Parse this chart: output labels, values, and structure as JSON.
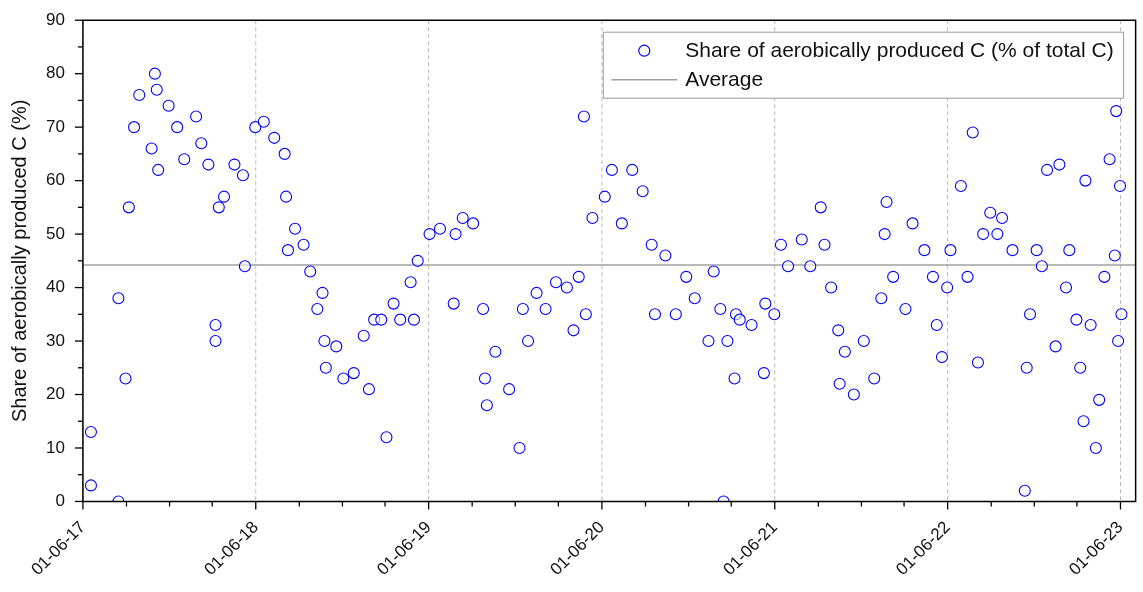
{
  "chart_data": {
    "type": "scatter",
    "ylabel": "Share of aerobically produced C (%)",
    "x": [
      "2017-06-18",
      "2017-06-18",
      "2017-08-15",
      "2017-08-15",
      "2017-08-30",
      "2017-09-06",
      "2017-09-17",
      "2017-09-28",
      "2017-10-24",
      "2017-10-31",
      "2017-11-04",
      "2017-11-07",
      "2017-11-29",
      "2017-12-17",
      "2018-01-01",
      "2018-01-26",
      "2018-02-06",
      "2018-02-21",
      "2018-03-08",
      "2018-03-08",
      "2018-03-15",
      "2018-03-26",
      "2018-04-17",
      "2018-05-05",
      "2018-05-09",
      "2018-05-31",
      "2018-06-18",
      "2018-07-10",
      "2018-08-01",
      "2018-08-04",
      "2018-08-08",
      "2018-08-23",
      "2018-09-10",
      "2018-09-24",
      "2018-10-09",
      "2018-10-20",
      "2018-10-24",
      "2018-10-27",
      "2018-11-18",
      "2018-12-03",
      "2018-12-25",
      "2019-01-15",
      "2019-01-26",
      "2019-02-06",
      "2019-02-21",
      "2019-03-04",
      "2019-03-19",
      "2019-04-02",
      "2019-04-24",
      "2019-05-01",
      "2019-05-09",
      "2019-06-03",
      "2019-06-25",
      "2019-07-24",
      "2019-07-28",
      "2019-08-12",
      "2019-09-03",
      "2019-09-24",
      "2019-09-28",
      "2019-10-02",
      "2019-10-20",
      "2019-11-18",
      "2019-12-10",
      "2019-12-17",
      "2019-12-28",
      "2020-01-15",
      "2020-02-03",
      "2020-02-25",
      "2020-03-19",
      "2020-04-02",
      "2020-04-13",
      "2020-04-24",
      "2020-04-28",
      "2020-05-12",
      "2020-06-07",
      "2020-06-22",
      "2020-07-13",
      "2020-08-04",
      "2020-08-26",
      "2020-09-14",
      "2020-09-21",
      "2020-10-13",
      "2020-11-04",
      "2020-11-26",
      "2020-12-14",
      "2021-01-12",
      "2021-01-23",
      "2021-02-06",
      "2021-02-13",
      "2021-02-21",
      "2021-03-08",
      "2021-03-11",
      "2021-03-19",
      "2021-04-13",
      "2021-05-09",
      "2021-05-12",
      "2021-05-31",
      "2021-06-14",
      "2021-06-29",
      "2021-07-28",
      "2021-08-15",
      "2021-09-06",
      "2021-09-14",
      "2021-09-28",
      "2021-10-13",
      "2021-10-16",
      "2021-10-27",
      "2021-11-15",
      "2021-12-06",
      "2021-12-28",
      "2022-01-12",
      "2022-01-19",
      "2022-01-23",
      "2022-02-06",
      "2022-03-04",
      "2022-03-19",
      "2022-04-13",
      "2022-05-01",
      "2022-05-09",
      "2022-05-20",
      "2022-05-31",
      "2022-06-07",
      "2022-06-29",
      "2022-07-13",
      "2022-07-24",
      "2022-08-04",
      "2022-08-15",
      "2022-08-30",
      "2022-09-14",
      "2022-09-24",
      "2022-10-16",
      "2022-11-11",
      "2022-11-15",
      "2022-11-22",
      "2022-12-06",
      "2022-12-17",
      "2022-12-28",
      "2023-01-15",
      "2023-01-23",
      "2023-02-06",
      "2023-02-13",
      "2023-02-28",
      "2023-03-08",
      "2023-03-15",
      "2023-03-19",
      "2023-03-30",
      "2023-04-10",
      "2023-04-17",
      "2023-04-28",
      "2023-05-09",
      "2023-05-20",
      "2023-05-23",
      "2023-05-27",
      "2023-05-31",
      "2023-06-03"
    ],
    "series": [
      {
        "name": "Share of aerobically produced C (% of total C)",
        "color": "#0000ff",
        "values": [
          13,
          3,
          0,
          38,
          23,
          55,
          70,
          76,
          66,
          80,
          77,
          62,
          74,
          70,
          64,
          72,
          67,
          63,
          33,
          30,
          55,
          57,
          63,
          61,
          44,
          70,
          71,
          68,
          65,
          57,
          47,
          51,
          48,
          43,
          36,
          39,
          30,
          25,
          29,
          23,
          24,
          31,
          21,
          34,
          34,
          12,
          37,
          34,
          41,
          34,
          45,
          50,
          51,
          37,
          50,
          53,
          52,
          36,
          23,
          18,
          28,
          21,
          10,
          36,
          30,
          39,
          36,
          41,
          40,
          32,
          42,
          72,
          35,
          53,
          57,
          62,
          52,
          62,
          58,
          48,
          35,
          46,
          35,
          42,
          38,
          30,
          43,
          36,
          0,
          30,
          23,
          35,
          34,
          33,
          24,
          37,
          35,
          48,
          44,
          49,
          44,
          55,
          48,
          40,
          32,
          22,
          28,
          20,
          30,
          23,
          38,
          50,
          56,
          42,
          36,
          52,
          47,
          42,
          33,
          27,
          40,
          47,
          59,
          42,
          69,
          26,
          50,
          54,
          50,
          53,
          47,
          2,
          25,
          35,
          47,
          44,
          62,
          29,
          63,
          40,
          47,
          34,
          25,
          15,
          60,
          33,
          10,
          19,
          42,
          64,
          46,
          73,
          30,
          59,
          35
        ]
      }
    ],
    "xlim": [
      "2017-06-01",
      "2023-07-03"
    ],
    "xticks": [
      {
        "value": "2017-06-01",
        "label": "01-06-17"
      },
      {
        "value": "2017-09-01",
        "label": null
      },
      {
        "value": "2017-12-01",
        "label": null
      },
      {
        "value": "2018-03-01",
        "label": null
      },
      {
        "value": "2018-06-01",
        "label": "01-06-18"
      },
      {
        "value": "2018-09-01",
        "label": null
      },
      {
        "value": "2018-12-01",
        "label": null
      },
      {
        "value": "2019-03-01",
        "label": null
      },
      {
        "value": "2019-06-01",
        "label": "01-06-19"
      },
      {
        "value": "2019-09-01",
        "label": null
      },
      {
        "value": "2019-12-01",
        "label": null
      },
      {
        "value": "2020-03-01",
        "label": null
      },
      {
        "value": "2020-06-01",
        "label": "01-06-20"
      },
      {
        "value": "2020-09-01",
        "label": null
      },
      {
        "value": "2020-12-01",
        "label": null
      },
      {
        "value": "2021-03-01",
        "label": null
      },
      {
        "value": "2021-06-01",
        "label": "01-06-21"
      },
      {
        "value": "2021-09-01",
        "label": null
      },
      {
        "value": "2021-12-01",
        "label": null
      },
      {
        "value": "2022-03-01",
        "label": null
      },
      {
        "value": "2022-06-01",
        "label": "01-06-22"
      },
      {
        "value": "2022-09-01",
        "label": null
      },
      {
        "value": "2022-12-01",
        "label": null
      },
      {
        "value": "2023-03-01",
        "label": null
      },
      {
        "value": "2023-06-01",
        "label": "01-06-23"
      }
    ],
    "ylim": [
      0,
      90
    ],
    "yticks": [
      0,
      {
        "value": 5,
        "label": null
      },
      10,
      {
        "value": 15,
        "label": null
      },
      20,
      {
        "value": 25,
        "label": null
      },
      30,
      {
        "value": 35,
        "label": null
      },
      40,
      {
        "value": 45,
        "label": null
      },
      50,
      {
        "value": 55,
        "label": null
      },
      60,
      {
        "value": 65,
        "label": null
      },
      70,
      {
        "value": 75,
        "label": null
      },
      80,
      {
        "value": 85,
        "label": null
      },
      90
    ],
    "grid": "x",
    "legend": "top right",
    "marker": "circle",
    "ref_lines": [
      {
        "axis": "y",
        "value": 44.2,
        "label": "Average",
        "color": "#a0a0a0"
      }
    ]
  }
}
